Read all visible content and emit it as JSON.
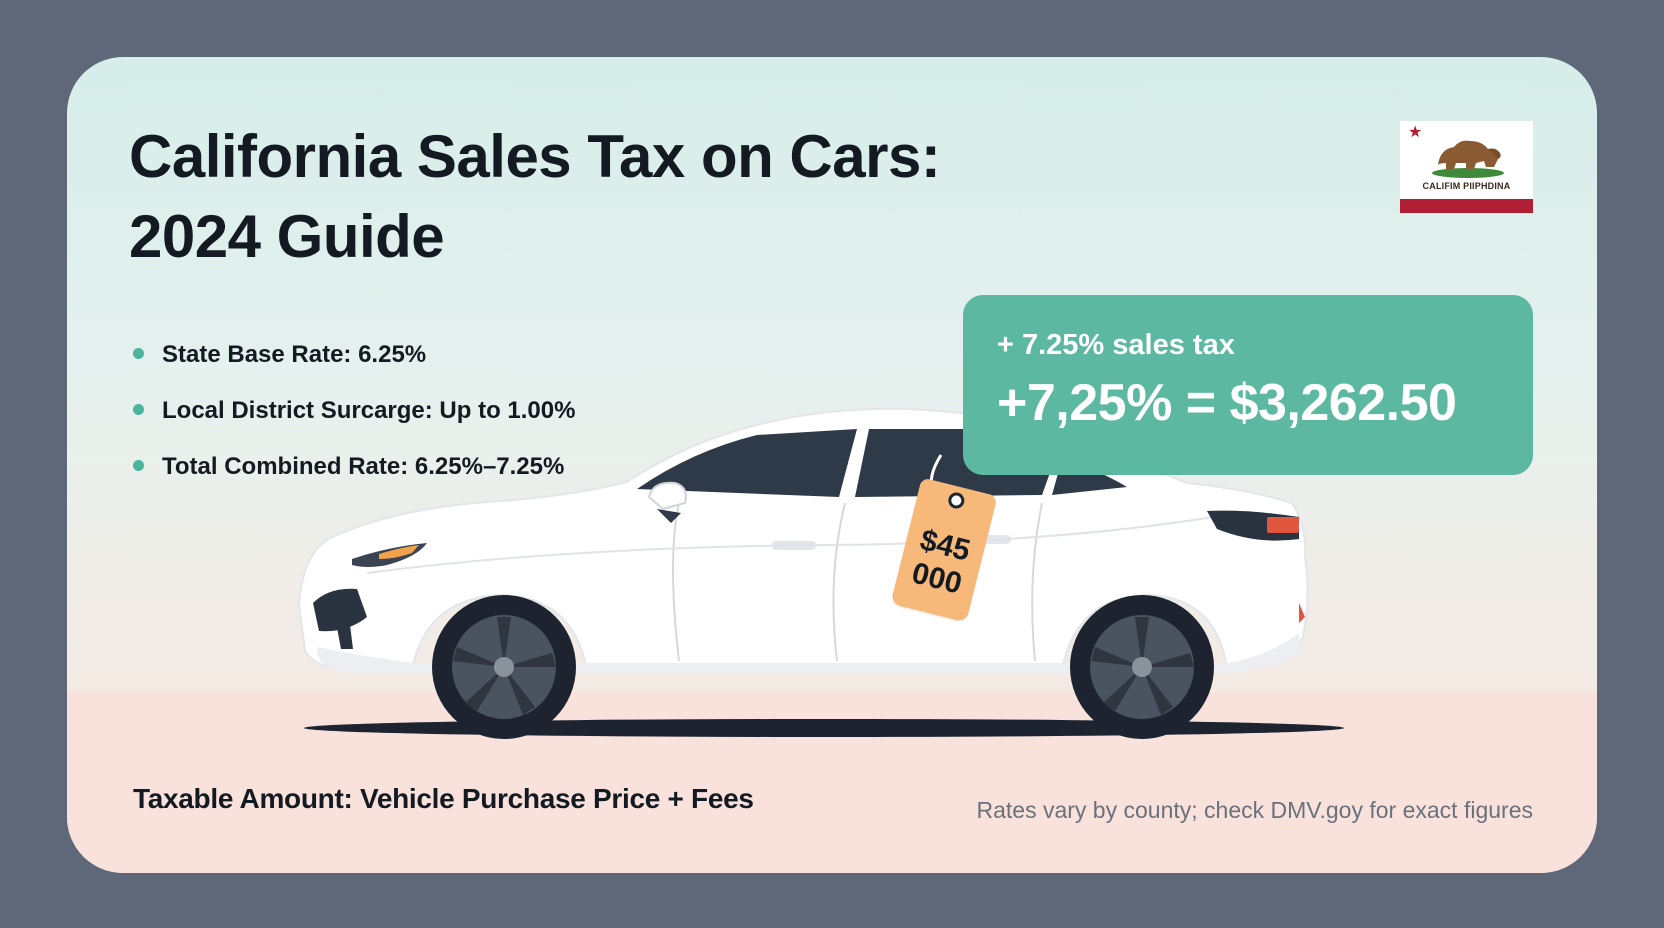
{
  "title": {
    "line1": "California Sales Tax on Cars:",
    "line2": "2024 Guide"
  },
  "bullets": [
    {
      "label": "State Base Rate: 6.25%"
    },
    {
      "label": "Local District Surcarge: Up to 1.00%"
    },
    {
      "label": "Total Combined Rate: 6.25%–7.25%"
    }
  ],
  "flag": {
    "text": "CALIFIM PIIPHDINA",
    "icon": "california-flag-icon"
  },
  "callout": {
    "line1": "+ 7.25% sales tax",
    "line2": "+7,25% = $3,262.50"
  },
  "price_tag": {
    "line1": "$45",
    "line2": "000"
  },
  "footer": {
    "left": "Taxable Amount: Vehicle Purchase Price + Fees",
    "right": "Rates vary by county; check DMV.goy for exact figures"
  },
  "colors": {
    "accent": "#5cb8a0",
    "bullet_dot": "#4bb59c",
    "background": "#5f6878",
    "tag": "#f6b979",
    "flag_red": "#b21f35"
  }
}
